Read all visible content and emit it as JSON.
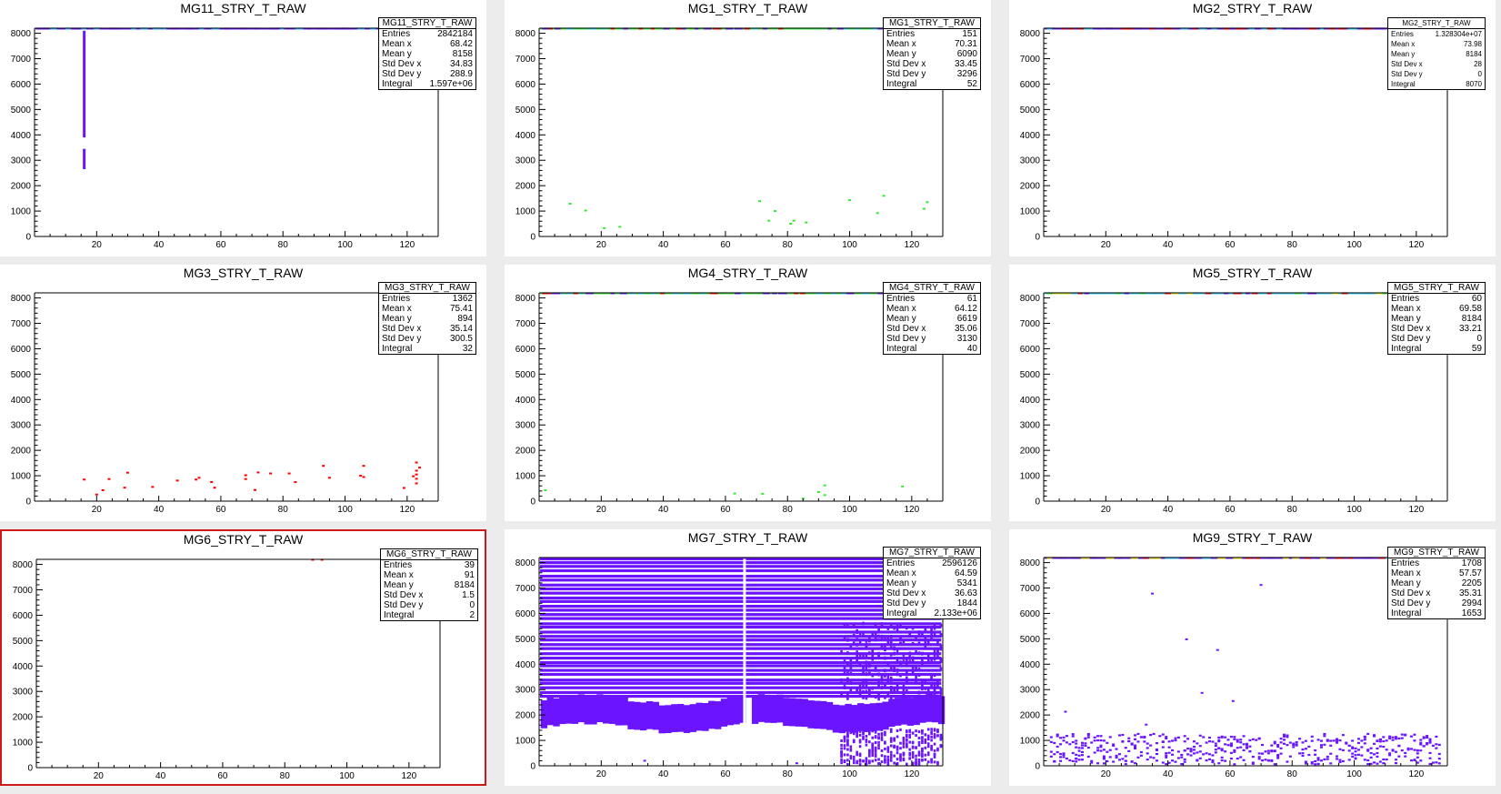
{
  "colors": {
    "violet": "#6a14ff",
    "red": "#ff0000",
    "green": "#35e835",
    "cyan": "#2fd0ff",
    "yellow": "#f0e000",
    "selected_border": "#d01818"
  },
  "chart_data": [
    {
      "type": "heatmap",
      "title": "MG11_STRY_T_RAW",
      "xlim": [
        0,
        130
      ],
      "ylim": [
        0,
        8200
      ],
      "x_ticks": [
        "20",
        "40",
        "60",
        "80",
        "100",
        "120"
      ],
      "y_ticks": [
        "0",
        "1000",
        "2000",
        "3000",
        "4000",
        "5000",
        "6000",
        "7000",
        "8000"
      ],
      "stats": {
        "name": "MG11_STRY_T_RAW",
        "rows": [
          [
            "Entries",
            "2842184"
          ],
          [
            "Mean x",
            "68.42"
          ],
          [
            "Mean y",
            "8158"
          ],
          [
            "Std Dev x",
            "34.83"
          ],
          [
            "Std Dev y",
            "288.9"
          ],
          [
            "Integral",
            "1.597e+06"
          ]
        ]
      },
      "top_band": {
        "y": 8184,
        "colors": [
          "#6a14ff",
          "#2fd0ff"
        ]
      },
      "cells": [
        {
          "x": 16,
          "y1": 3900,
          "y2": 8100,
          "color": "#6a14ff"
        },
        {
          "x": 16,
          "y1": 2650,
          "y2": 3450,
          "color": "#6a14ff"
        }
      ]
    },
    {
      "type": "heatmap",
      "title": "MG1_STRY_T_RAW",
      "xlim": [
        0,
        130
      ],
      "ylim": [
        0,
        8200
      ],
      "x_ticks": [
        "20",
        "40",
        "60",
        "80",
        "100",
        "120"
      ],
      "y_ticks": [
        "0",
        "1000",
        "2000",
        "3000",
        "4000",
        "5000",
        "6000",
        "7000",
        "8000"
      ],
      "stats": {
        "name": "MG1_STRY_T_RAW",
        "rows": [
          [
            "Entries",
            "151"
          ],
          [
            "Mean x",
            "70.31"
          ],
          [
            "Mean y",
            "6090"
          ],
          [
            "Std Dev x",
            "33.45"
          ],
          [
            "Std Dev y",
            "3296"
          ],
          [
            "Integral",
            "52"
          ]
        ]
      },
      "top_band": {
        "y": 8184,
        "colors": [
          "#35e835",
          "#6a14ff",
          "#ff0000",
          "#2fd0ff"
        ]
      },
      "points": {
        "color": "#35e835",
        "xy": [
          [
            10,
            1290
          ],
          [
            15,
            1020
          ],
          [
            21,
            330
          ],
          [
            26,
            380
          ],
          [
            71,
            1390
          ],
          [
            74,
            620
          ],
          [
            76,
            1000
          ],
          [
            81,
            500
          ],
          [
            82,
            620
          ],
          [
            86,
            550
          ],
          [
            100,
            1430
          ],
          [
            109,
            920
          ],
          [
            111,
            1600
          ],
          [
            124,
            1090
          ],
          [
            125,
            1350
          ]
        ]
      }
    },
    {
      "type": "heatmap",
      "title": "MG2_STRY_T_RAW",
      "xlim": [
        0,
        130
      ],
      "ylim": [
        0,
        8200
      ],
      "x_ticks": [
        "20",
        "40",
        "60",
        "80",
        "100",
        "120"
      ],
      "y_ticks": [
        "0",
        "1000",
        "2000",
        "3000",
        "4000",
        "5000",
        "6000",
        "7000",
        "8000"
      ],
      "stats": {
        "name": "MG2_STRY_T_RAW",
        "small": true,
        "rows": [
          [
            "Entries",
            "1.328304e+07"
          ],
          [
            "Mean x",
            "73.98"
          ],
          [
            "Mean y",
            "8184"
          ],
          [
            "Std Dev x",
            "28"
          ],
          [
            "Std Dev y",
            "0"
          ],
          [
            "Integral",
            "8070"
          ]
        ]
      },
      "top_band": {
        "y": 8184,
        "colors": [
          "#6a14ff",
          "#2fd0ff",
          "#ff0000"
        ]
      }
    },
    {
      "type": "heatmap",
      "title": "MG3_STRY_T_RAW",
      "xlim": [
        0,
        130
      ],
      "ylim": [
        0,
        8200
      ],
      "x_ticks": [
        "20",
        "40",
        "60",
        "80",
        "100",
        "120"
      ],
      "y_ticks": [
        "0",
        "1000",
        "2000",
        "3000",
        "4000",
        "5000",
        "6000",
        "7000",
        "8000"
      ],
      "stats": {
        "name": "MG3_STRY_T_RAW",
        "rows": [
          [
            "Entries",
            "1362"
          ],
          [
            "Mean x",
            "75.41"
          ],
          [
            "Mean y",
            "894"
          ],
          [
            "Std Dev x",
            "35.14"
          ],
          [
            "Std Dev y",
            "300.5"
          ],
          [
            "Integral",
            "32"
          ]
        ]
      },
      "points": {
        "color": "#ff0000",
        "xy": [
          [
            16,
            850
          ],
          [
            20,
            260
          ],
          [
            22,
            430
          ],
          [
            24,
            870
          ],
          [
            29,
            530
          ],
          [
            30,
            1120
          ],
          [
            38,
            560
          ],
          [
            46,
            810
          ],
          [
            52,
            850
          ],
          [
            53,
            920
          ],
          [
            57,
            750
          ],
          [
            58,
            530
          ],
          [
            68,
            1020
          ],
          [
            68,
            870
          ],
          [
            71,
            440
          ],
          [
            72,
            1130
          ],
          [
            76,
            1090
          ],
          [
            82,
            1090
          ],
          [
            84,
            750
          ],
          [
            93,
            1390
          ],
          [
            95,
            920
          ],
          [
            105,
            1000
          ],
          [
            106,
            1390
          ],
          [
            106,
            950
          ],
          [
            119,
            520
          ],
          [
            122,
            980
          ],
          [
            123,
            880
          ],
          [
            123,
            1520
          ],
          [
            123,
            1050
          ],
          [
            123,
            1200
          ],
          [
            123,
            700
          ],
          [
            124,
            1320
          ]
        ]
      }
    },
    {
      "type": "heatmap",
      "title": "MG4_STRY_T_RAW",
      "xlim": [
        0,
        130
      ],
      "ylim": [
        0,
        8200
      ],
      "x_ticks": [
        "20",
        "40",
        "60",
        "80",
        "100",
        "120"
      ],
      "y_ticks": [
        "0",
        "1000",
        "2000",
        "3000",
        "4000",
        "5000",
        "6000",
        "7000",
        "8000"
      ],
      "stats": {
        "name": "MG4_STRY_T_RAW",
        "rows": [
          [
            "Entries",
            "61"
          ],
          [
            "Mean x",
            "64.12"
          ],
          [
            "Mean y",
            "6619"
          ],
          [
            "Std Dev x",
            "35.06"
          ],
          [
            "Std Dev y",
            "3130"
          ],
          [
            "Integral",
            "40"
          ]
        ]
      },
      "top_band": {
        "y": 8184,
        "colors": [
          "#35e835",
          "#6a14ff",
          "#ff0000",
          "#2fd0ff"
        ]
      },
      "points": {
        "color": "#35e835",
        "xy": [
          [
            2,
            430
          ],
          [
            63,
            300
          ],
          [
            72,
            290
          ],
          [
            85,
            100
          ],
          [
            90,
            360
          ],
          [
            92,
            620
          ],
          [
            92,
            240
          ],
          [
            117,
            580
          ]
        ]
      }
    },
    {
      "type": "heatmap",
      "title": "MG5_STRY_T_RAW",
      "xlim": [
        0,
        130
      ],
      "ylim": [
        0,
        8200
      ],
      "x_ticks": [
        "20",
        "40",
        "60",
        "80",
        "100",
        "120"
      ],
      "y_ticks": [
        "0",
        "1000",
        "2000",
        "3000",
        "4000",
        "5000",
        "6000",
        "7000",
        "8000"
      ],
      "stats": {
        "name": "MG5_STRY_T_RAW",
        "rows": [
          [
            "Entries",
            "60"
          ],
          [
            "Mean x",
            "69.58"
          ],
          [
            "Mean y",
            "8184"
          ],
          [
            "Std Dev x",
            "33.21"
          ],
          [
            "Std Dev y",
            "0"
          ],
          [
            "Integral",
            "59"
          ]
        ]
      },
      "top_band": {
        "y": 8184,
        "colors": [
          "#2fd0ff",
          "#6a14ff",
          "#f0e000",
          "#35e835",
          "#ff0000"
        ]
      }
    },
    {
      "type": "heatmap",
      "title": "MG6_STRY_T_RAW",
      "xlim": [
        0,
        130
      ],
      "ylim": [
        0,
        8200
      ],
      "x_ticks": [
        "20",
        "40",
        "60",
        "80",
        "100",
        "120"
      ],
      "y_ticks": [
        "0",
        "1000",
        "2000",
        "3000",
        "4000",
        "5000",
        "6000",
        "7000",
        "8000"
      ],
      "stats": {
        "name": "MG6_STRY_T_RAW",
        "rows": [
          [
            "Entries",
            "39"
          ],
          [
            "Mean x",
            "91"
          ],
          [
            "Mean y",
            "8184"
          ],
          [
            "Std Dev x",
            "1.5"
          ],
          [
            "Std Dev y",
            "0"
          ],
          [
            "Integral",
            "2"
          ]
        ]
      },
      "points": {
        "color": "#ff0000",
        "xy": [
          [
            89,
            8184
          ],
          [
            92,
            8184
          ]
        ]
      }
    },
    {
      "type": "heatmap",
      "title": "MG7_STRY_T_RAW",
      "xlim": [
        0,
        130
      ],
      "ylim": [
        0,
        8200
      ],
      "x_ticks": [
        "20",
        "40",
        "60",
        "80",
        "100",
        "120"
      ],
      "y_ticks": [
        "0",
        "1000",
        "2000",
        "3000",
        "4000",
        "5000",
        "6000",
        "7000",
        "8000"
      ],
      "stats": {
        "name": "MG7_STRY_T_RAW",
        "rows": [
          [
            "Entries",
            "2596126"
          ],
          [
            "Mean x",
            "64.59"
          ],
          [
            "Mean y",
            "5341"
          ],
          [
            "Std Dev x",
            "36.63"
          ],
          [
            "Std Dev y",
            "1844"
          ],
          [
            "Integral",
            "2.133e+06"
          ]
        ]
      },
      "dense": {
        "color": "#6a14ff",
        "stripe_from": 2700,
        "stripe_to": 8150,
        "stripe_step": 170,
        "band_y1": 1500,
        "band_y2": 2600,
        "gap_x": 66,
        "sparse_from": 97
      },
      "points": {
        "color": "#6a14ff",
        "xy": [
          [
            34,
            200
          ],
          [
            83,
            100
          ]
        ]
      }
    },
    {
      "type": "heatmap",
      "title": "MG9_STRY_T_RAW",
      "xlim": [
        0,
        130
      ],
      "ylim": [
        0,
        8200
      ],
      "x_ticks": [
        "20",
        "40",
        "60",
        "80",
        "100",
        "120"
      ],
      "y_ticks": [
        "0",
        "1000",
        "2000",
        "3000",
        "4000",
        "5000",
        "6000",
        "7000",
        "8000"
      ],
      "stats": {
        "name": "MG9_STRY_T_RAW",
        "rows": [
          [
            "Entries",
            "1708"
          ],
          [
            "Mean x",
            "57.57"
          ],
          [
            "Mean y",
            "2205"
          ],
          [
            "Std Dev x",
            "35.31"
          ],
          [
            "Std Dev y",
            "2994"
          ],
          [
            "Integral",
            "1653"
          ]
        ]
      },
      "top_band": {
        "y": 8184,
        "colors": [
          "#6a14ff",
          "#2fd0ff",
          "#ff0000",
          "#f0e000"
        ]
      },
      "points": {
        "color": "#6a14ff",
        "xy": [
          [
            7,
            2130
          ],
          [
            35,
            6780
          ],
          [
            46,
            4980
          ],
          [
            51,
            2870
          ],
          [
            56,
            4560
          ],
          [
            61,
            2550
          ],
          [
            70,
            7120
          ],
          [
            33,
            1620
          ]
        ]
      },
      "scatter_band": {
        "color": "#6a14ff",
        "x1": 2,
        "x2": 128,
        "y1": 100,
        "y2": 1300
      }
    }
  ]
}
